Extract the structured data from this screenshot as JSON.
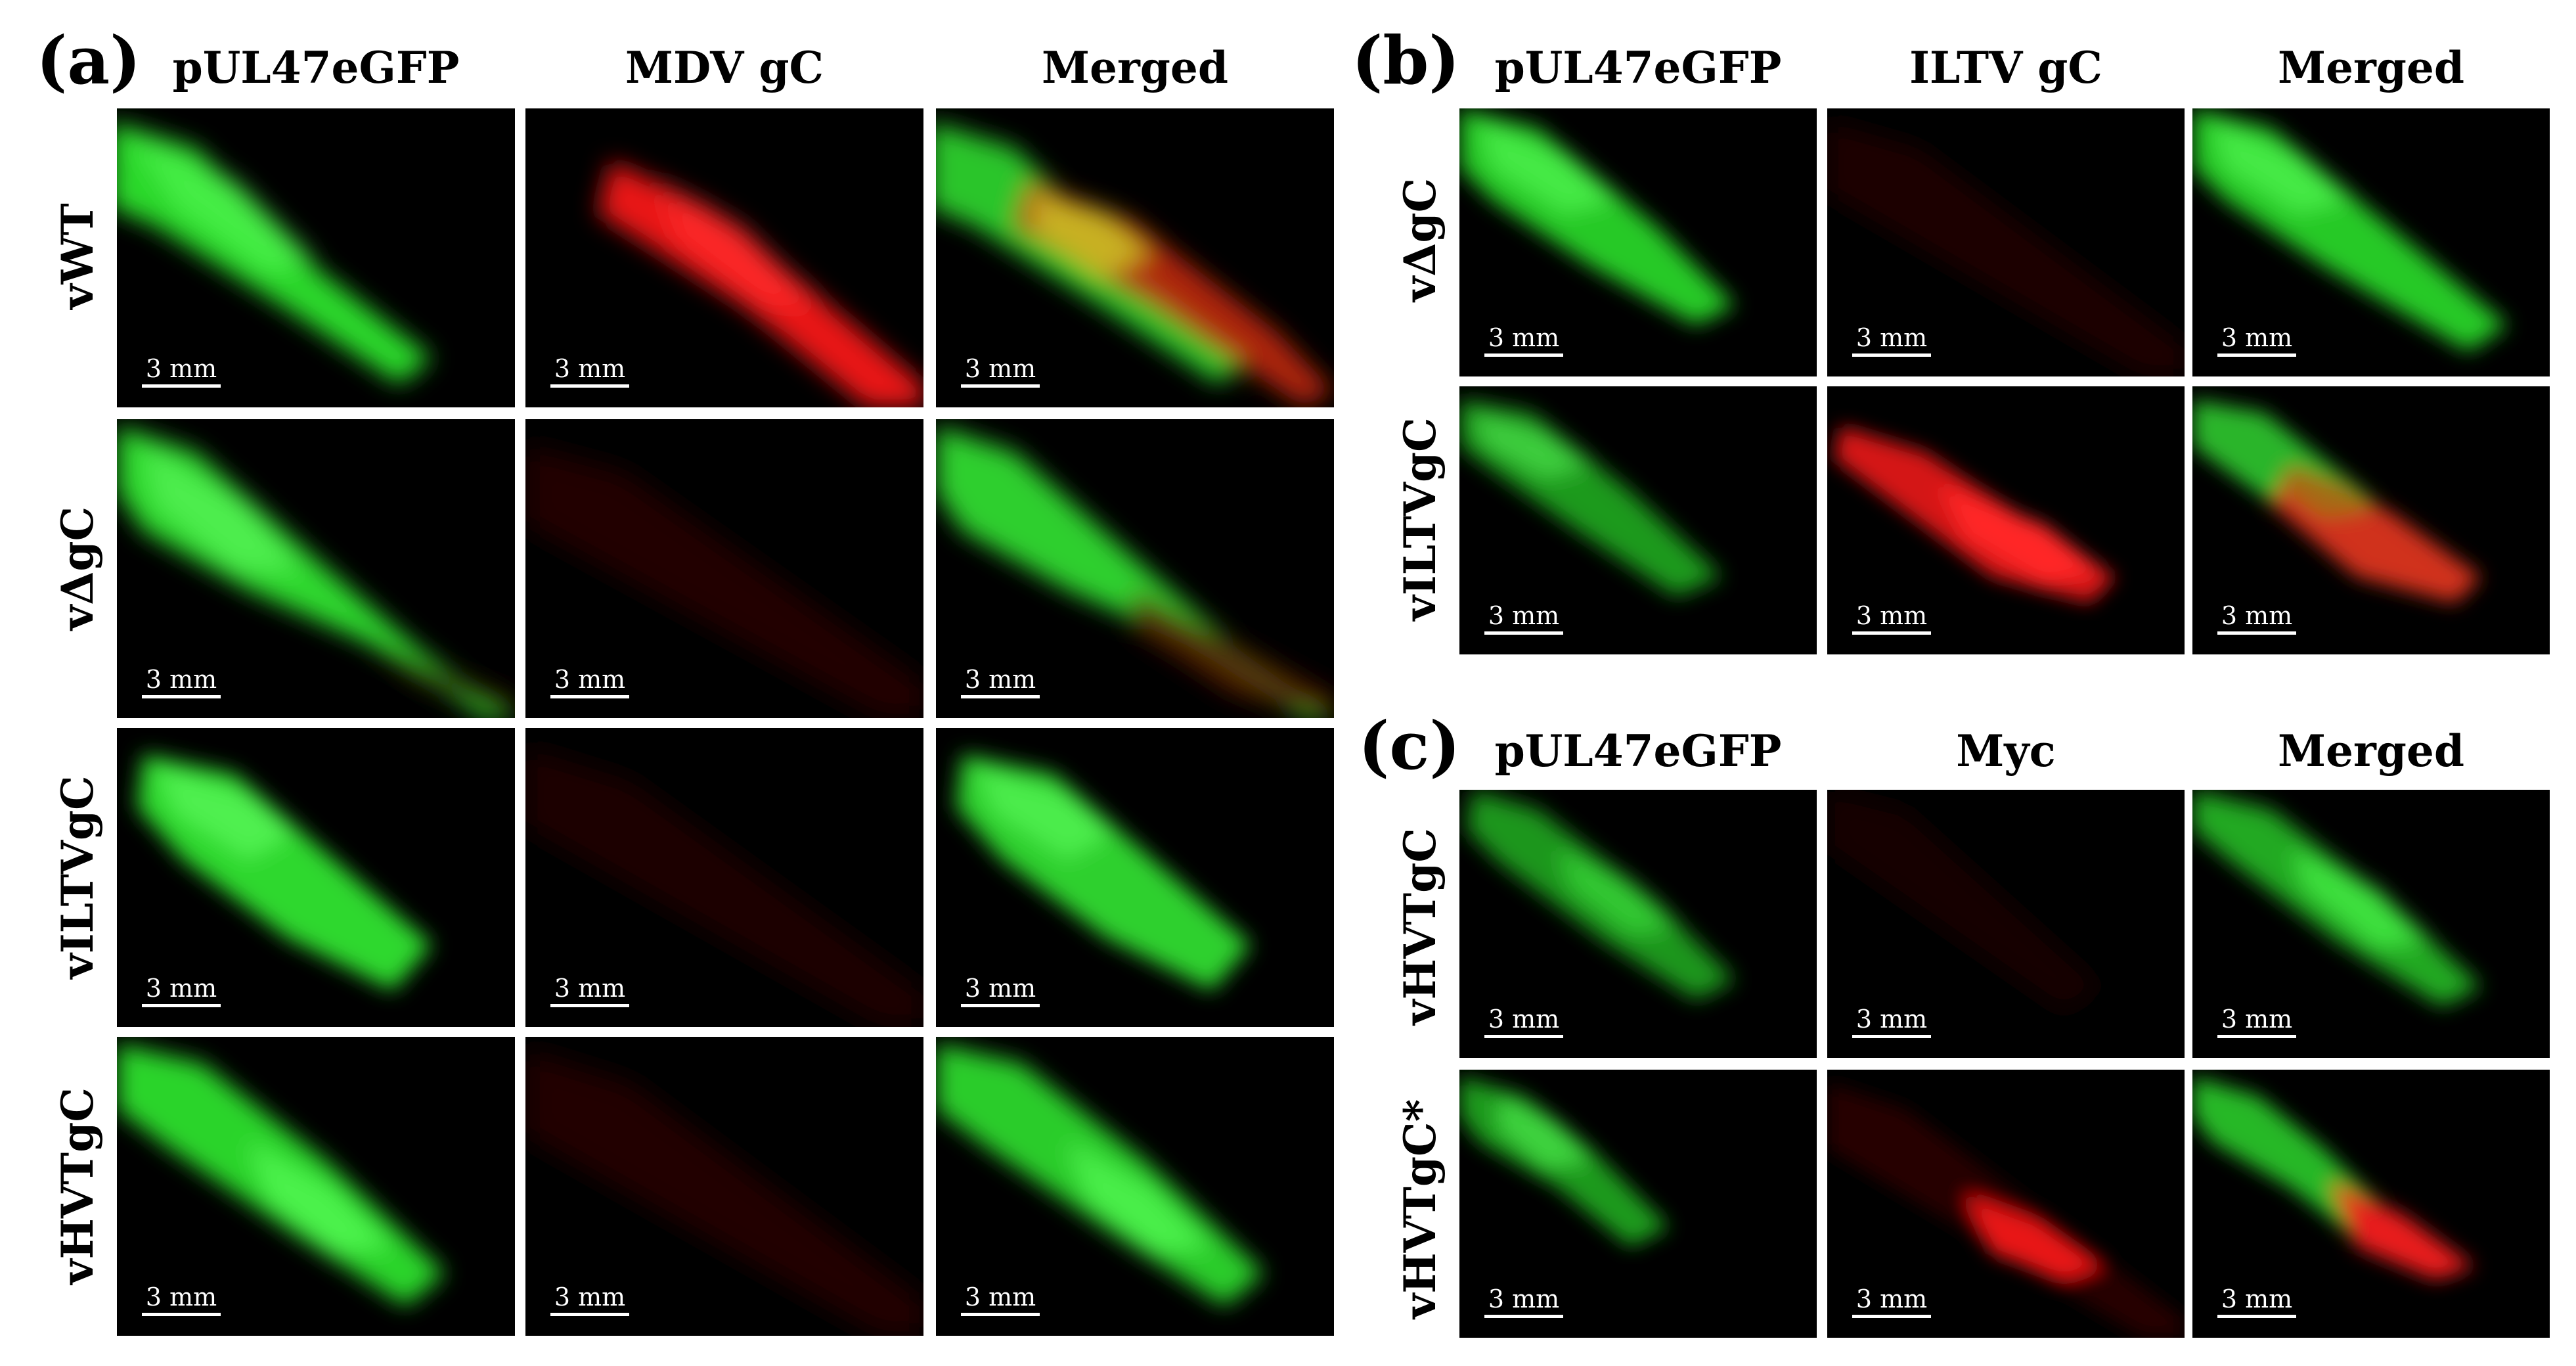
{
  "panels": {
    "a": {
      "label": "(a)",
      "columns": [
        "pUL47eGFP",
        "MDV gC",
        "Merged"
      ],
      "rows": [
        "vWT",
        "vΔgC",
        "vILTVgC",
        "vHVTgC"
      ]
    },
    "b": {
      "label": "(b)",
      "columns": [
        "pUL47eGFP",
        "ILTV gC",
        "Merged"
      ],
      "rows": [
        "vΔgC",
        "vILTVgC"
      ]
    },
    "c": {
      "label": "(c)",
      "columns": [
        "pUL47eGFP",
        "Myc",
        "Merged"
      ],
      "rows": [
        "vHVTgC",
        "vHVTgC*"
      ]
    }
  },
  "scale_bar_label": "3 mm",
  "colors": {
    "egfp_green": "#33e633",
    "stain_red": "#ff1a1a",
    "merged_yellow": "#ccb31a",
    "background": "#000000"
  }
}
